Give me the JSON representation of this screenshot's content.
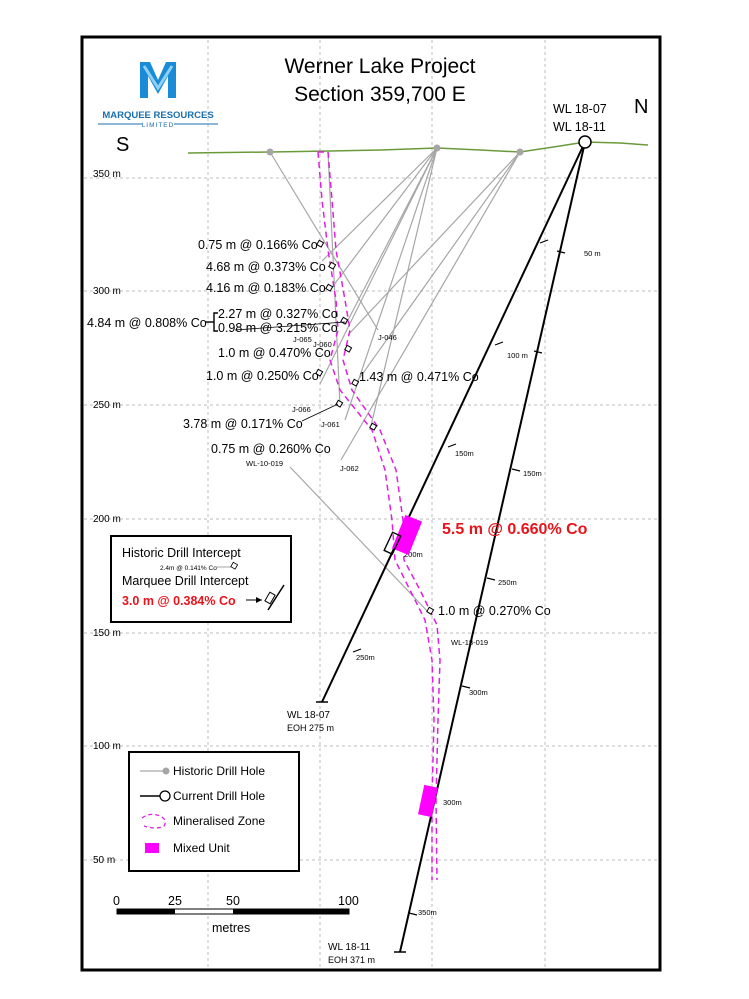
{
  "title": {
    "line1": "Werner Lake Project",
    "line2": "Section 359,700 E"
  },
  "logo": {
    "company": "MARQUEE RESOURCES",
    "suffix": "LIMITED",
    "color": "#1a8bd6"
  },
  "directions": {
    "south": "S",
    "north": "N"
  },
  "current_holes_label": {
    "line1": "WL 18-07",
    "line2": "WL 18-11"
  },
  "elevation_axis": [
    "350 m",
    "300 m",
    "250 m",
    "200 m",
    "150 m",
    "100 m",
    "50 m"
  ],
  "historic_intercepts": [
    "0.75 m @ 0.166% Co",
    "4.68 m @ 0.373% Co",
    "4.16 m @ 0.183% Co",
    "2.27 m @ 0.327% Co",
    "0.98 m @ 3.215% Co",
    "1.0 m @ 0.470% Co",
    "1.0 m @ 0.250% Co",
    "1.43 m @ 0.471% Co",
    "3.78 m @ 0.171% Co",
    "0.75 m @ 0.260% Co",
    "1.0 m @ 0.270% Co"
  ],
  "combined_intercept": "4.84 m @ 0.808% Co",
  "hole_ids": [
    "J-046",
    "J-065",
    "J-060",
    "J-066",
    "J-061",
    "J-062",
    "WL-10-019",
    "WL-18-019"
  ],
  "marquee_intercept": "5.5 m @ 0.660% Co",
  "depth_marks_wl1807": [
    "50 m",
    "100 m",
    "150m",
    "200m",
    "250m"
  ],
  "depth_marks_wl1811": [
    "50 m",
    "100 m",
    "150m",
    "200m",
    "250m",
    "300m",
    "350m"
  ],
  "hole_ends": {
    "wl1807": {
      "name": "WL 18-07",
      "eoh": "EOH 275 m"
    },
    "wl1811": {
      "name": "WL 18-11",
      "eoh": "EOH 371 m"
    }
  },
  "intercept_legend": {
    "historic_title": "Historic Drill Intercept",
    "historic_example": "2.4m @ 0.141% Co",
    "marquee_title": "Marquee Drill Intercept",
    "marquee_example": "3.0 m @ 0.384% Co"
  },
  "legend": [
    {
      "label": "Historic Drill Hole",
      "icon": "historic-hole-icon"
    },
    {
      "label": "Current Drill Hole",
      "icon": "current-hole-icon"
    },
    {
      "label": "Mineralised Zone",
      "icon": "mineralised-zone-icon"
    },
    {
      "label": "Mixed Unit",
      "icon": "mixed-unit-icon"
    }
  ],
  "scale_bar": {
    "ticks": [
      "0",
      "25",
      "50",
      "100"
    ],
    "unit": "metres"
  },
  "colors": {
    "surface": "#6a9a3a",
    "zone": "#e020e0",
    "mixed_unit": "#ff00ff",
    "historic_hole": "#a6a6a6",
    "highlight": "#e8141b"
  }
}
